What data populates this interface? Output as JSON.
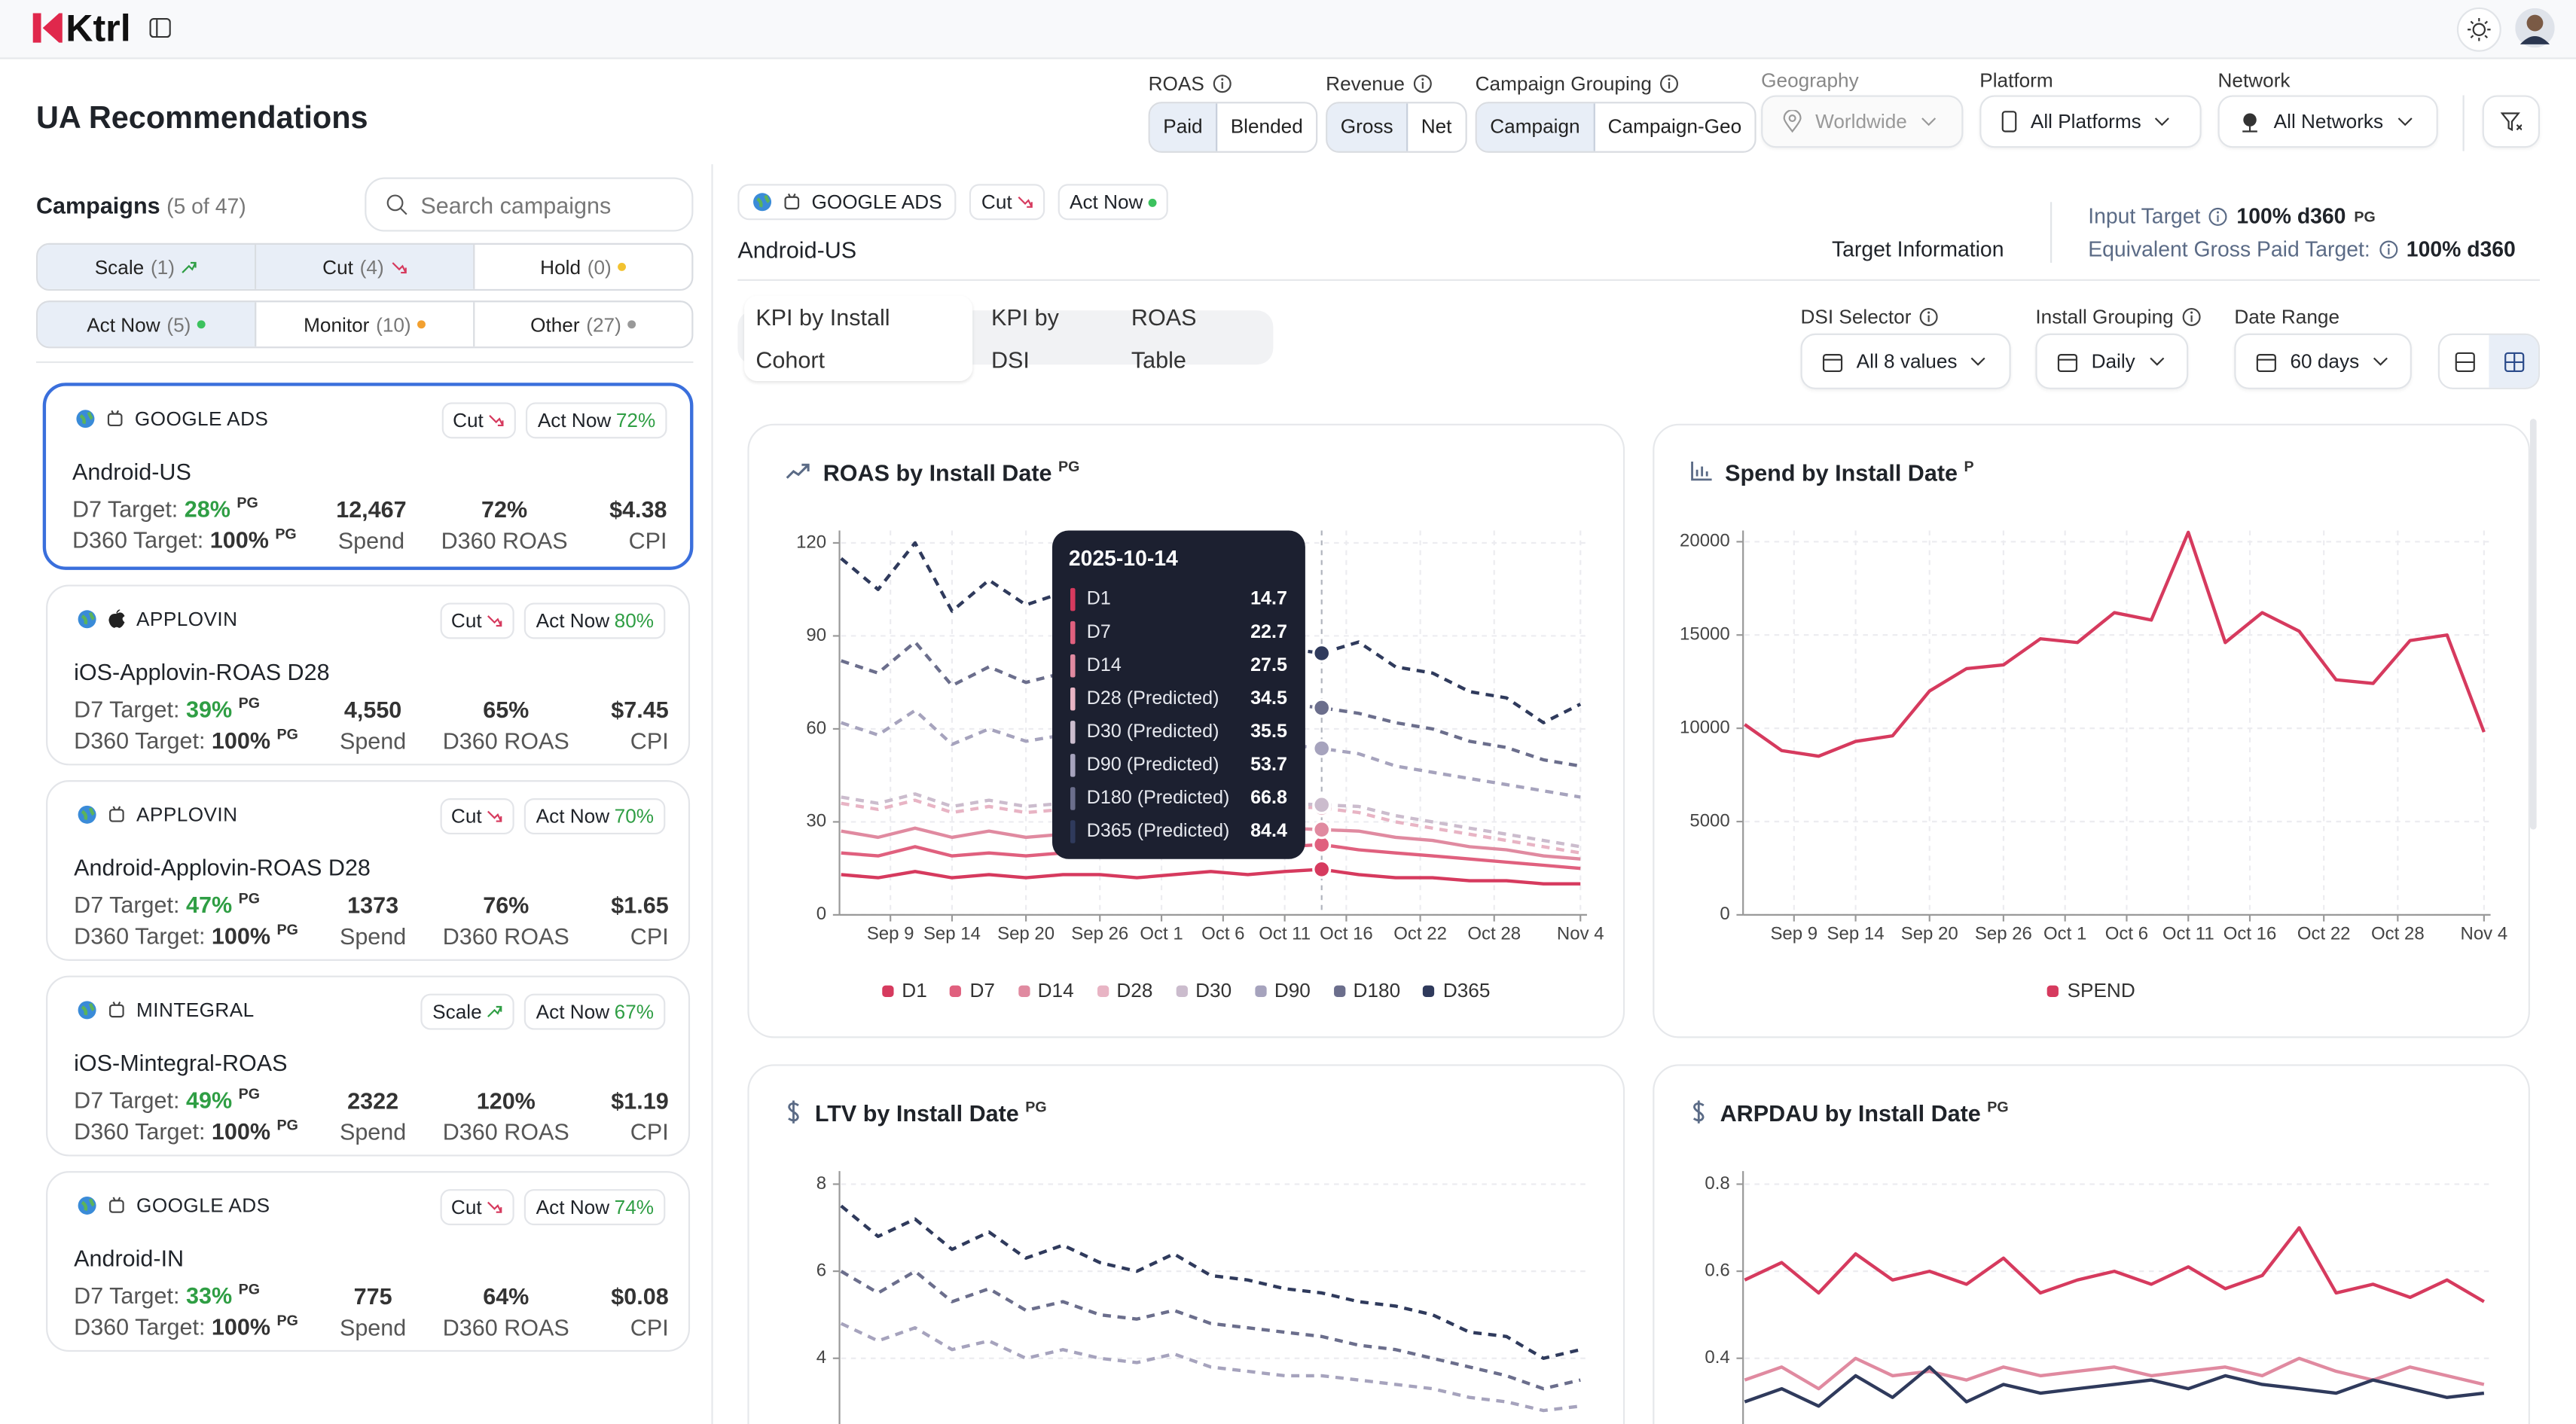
{
  "header": {
    "logo": "Ktrl"
  },
  "page_title": "UA Recommendations",
  "filters": {
    "roas": {
      "label": "ROAS",
      "options": [
        "Paid",
        "Blended"
      ]
    },
    "revenue": {
      "label": "Revenue",
      "options": [
        "Gross",
        "Net"
      ]
    },
    "campaign_grouping": {
      "label": "Campaign Grouping",
      "options": [
        "Campaign",
        "Campaign-Geo"
      ]
    },
    "geography": {
      "label": "Geography",
      "value": "Worldwide"
    },
    "platform": {
      "label": "Platform",
      "value": "All Platforms"
    },
    "network": {
      "label": "Network",
      "value": "All Networks"
    }
  },
  "campaigns": {
    "title": "Campaigns",
    "count": "(5 of 47)",
    "search_placeholder": "Search campaigns",
    "filters": [
      {
        "label": "Scale",
        "count": "(1)"
      },
      {
        "label": "Cut",
        "count": "(4)"
      },
      {
        "label": "Hold",
        "count": "(0)"
      },
      {
        "label": "Act Now",
        "count": "(5)"
      },
      {
        "label": "Monitor",
        "count": "(10)"
      },
      {
        "label": "Other",
        "count": "(27)"
      }
    ],
    "card_labels": {
      "urgency": "Act Now",
      "d7": "D7 Target:",
      "d360": "D360 Target:",
      "tag": "PG",
      "spend": "Spend",
      "roas": "D360 ROAS",
      "cpi": "CPI"
    },
    "cards": [
      {
        "network": "GOOGLE ADS",
        "action": "Cut",
        "urgency_pct": "72%",
        "name": "Android-US",
        "d7_value": "28%",
        "d360_value": "100%",
        "spend": "12,467",
        "roas": "72%",
        "cpi": "$4.38"
      },
      {
        "network": "APPLOVIN",
        "action": "Cut",
        "urgency_pct": "80%",
        "name": "iOS-Applovin-ROAS D28",
        "d7_value": "39%",
        "d360_value": "100%",
        "spend": "4,550",
        "roas": "65%",
        "cpi": "$7.45"
      },
      {
        "network": "APPLOVIN",
        "action": "Cut",
        "urgency_pct": "70%",
        "name": "Android-Applovin-ROAS D28",
        "d7_value": "47%",
        "d360_value": "100%",
        "spend": "1373",
        "roas": "76%",
        "cpi": "$1.65"
      },
      {
        "network": "MINTEGRAL",
        "action": "Scale",
        "urgency_pct": "67%",
        "name": "iOS-Mintegral-ROAS",
        "d7_value": "49%",
        "d360_value": "100%",
        "spend": "2322",
        "roas": "120%",
        "cpi": "$1.19"
      },
      {
        "network": "GOOGLE ADS",
        "action": "Cut",
        "urgency_pct": "74%",
        "name": "Android-IN",
        "d7_value": "33%",
        "d360_value": "100%",
        "spend": "775",
        "roas": "64%",
        "cpi": "$0.08"
      }
    ]
  },
  "detail": {
    "network": "GOOGLE ADS",
    "action": "Cut",
    "urgency": "Act Now",
    "campaign": "Android-US",
    "target_info": "Target Information",
    "input_target_label": "Input Target",
    "input_target": "100% d360",
    "input_target_tag": "PG",
    "equiv_label": "Equivalent Gross Paid Target:",
    "equiv_value": "100% d360",
    "tabs": [
      "KPI by Install Cohort",
      "KPI by DSI",
      "ROAS Table"
    ],
    "dsi_selector": {
      "label": "DSI Selector",
      "value": "All 8 values"
    },
    "install_grouping": {
      "label": "Install Grouping",
      "value": "Daily"
    },
    "date_range": {
      "label": "Date Range",
      "value": "60 days"
    }
  },
  "chart_data": [
    {
      "type": "line",
      "title": "ROAS by Install Date",
      "title_tag": "PG",
      "grid": true,
      "legend": true,
      "x": [
        "2025-09-05",
        "2025-09-08",
        "2025-09-11",
        "2025-09-14",
        "2025-09-17",
        "2025-09-20",
        "2025-09-23",
        "2025-09-26",
        "2025-09-29",
        "2025-10-02",
        "2025-10-05",
        "2025-10-08",
        "2025-10-11",
        "2025-10-14",
        "2025-10-17",
        "2025-10-20",
        "2025-10-23",
        "2025-10-26",
        "2025-10-29",
        "2025-11-01",
        "2025-11-04"
      ],
      "xticks": [
        {
          "value": "2025-09-09",
          "label": "Sep 9"
        },
        {
          "value": "2025-09-14",
          "label": "Sep 14"
        },
        {
          "value": "2025-09-20",
          "label": "Sep 20"
        },
        {
          "value": "2025-09-26",
          "label": "Sep 26"
        },
        {
          "value": "2025-10-01",
          "label": "Oct 1"
        },
        {
          "value": "2025-10-06",
          "label": "Oct 6"
        },
        {
          "value": "2025-10-11",
          "label": "Oct 11"
        },
        {
          "value": "2025-10-16",
          "label": "Oct 16"
        },
        {
          "value": "2025-10-22",
          "label": "Oct 22"
        },
        {
          "value": "2025-10-28",
          "label": "Oct 28"
        },
        {
          "value": "2025-11-04",
          "label": "Nov 4"
        }
      ],
      "ylim": [
        0,
        124
      ],
      "yticks": [
        0,
        30,
        60,
        90,
        120
      ],
      "series": [
        {
          "name": "D1",
          "color": "#d63a5e",
          "line_style": "solid",
          "values": [
            13,
            12,
            14,
            12,
            13,
            12,
            13,
            13,
            12,
            13,
            14,
            13,
            14,
            14.7,
            13,
            12,
            12,
            11,
            11,
            10,
            10
          ]
        },
        {
          "name": "D7",
          "color": "#e0607e",
          "line_style": "solid",
          "values": [
            20,
            19,
            22,
            19,
            20,
            19,
            20,
            21,
            20,
            21,
            22,
            21,
            22,
            22.7,
            21,
            20,
            19,
            18,
            17,
            16,
            15
          ]
        },
        {
          "name": "D14",
          "color": "#e08aa0",
          "line_style": "solid",
          "values": [
            27,
            25,
            28,
            25,
            27,
            25,
            26,
            27,
            26,
            28,
            28,
            27,
            28,
            27.5,
            27,
            25,
            24,
            22,
            21,
            19,
            18
          ]
        },
        {
          "name": "D28",
          "color": "#e8b4c4",
          "line_style": "dashed",
          "values": [
            36,
            34,
            37,
            33,
            35,
            33,
            34,
            35,
            34,
            36,
            35,
            34,
            35,
            34.5,
            33,
            30,
            28,
            26,
            24,
            22,
            20
          ]
        },
        {
          "name": "D30",
          "color": "#cbbccd",
          "line_style": "dashed",
          "values": [
            38,
            36,
            39,
            35,
            37,
            35,
            36,
            37,
            36,
            38,
            37,
            36,
            36,
            35.5,
            35,
            32,
            30,
            28,
            26,
            24,
            22
          ]
        },
        {
          "name": "D90",
          "color": "#a6a3bd",
          "line_style": "dashed",
          "values": [
            62,
            58,
            66,
            55,
            60,
            56,
            58,
            57,
            56,
            58,
            55,
            54,
            55,
            53.7,
            52,
            48,
            46,
            44,
            42,
            40,
            38
          ]
        },
        {
          "name": "D180",
          "color": "#6b6e8c",
          "line_style": "dashed",
          "values": [
            82,
            78,
            88,
            74,
            80,
            75,
            78,
            76,
            74,
            76,
            70,
            68,
            68,
            66.8,
            65,
            62,
            60,
            56,
            54,
            50,
            48
          ]
        },
        {
          "name": "D365",
          "color": "#2f3a5c",
          "line_style": "dashed",
          "values": [
            115,
            105,
            120,
            98,
            108,
            100,
            104,
            100,
            96,
            98,
            90,
            86,
            86,
            84.4,
            88,
            80,
            78,
            72,
            70,
            62,
            68
          ]
        }
      ],
      "tooltip": {
        "x": "2025-10-14",
        "labels": [
          "D1",
          "D7",
          "D14",
          "D28 (Predicted)",
          "D30 (Predicted)",
          "D90 (Predicted)",
          "D180 (Predicted)",
          "D365 (Predicted)"
        ]
      }
    },
    {
      "type": "line",
      "title": "Spend by Install Date",
      "title_tag": "P",
      "grid": true,
      "legend": true,
      "x": [
        "2025-09-05",
        "2025-09-08",
        "2025-09-11",
        "2025-09-14",
        "2025-09-17",
        "2025-09-20",
        "2025-09-23",
        "2025-09-26",
        "2025-09-29",
        "2025-10-02",
        "2025-10-05",
        "2025-10-08",
        "2025-10-11",
        "2025-10-14",
        "2025-10-17",
        "2025-10-20",
        "2025-10-23",
        "2025-10-26",
        "2025-10-29",
        "2025-11-01",
        "2025-11-04"
      ],
      "xticks": [
        {
          "value": "2025-09-09",
          "label": "Sep 9"
        },
        {
          "value": "2025-09-14",
          "label": "Sep 14"
        },
        {
          "value": "2025-09-20",
          "label": "Sep 20"
        },
        {
          "value": "2025-09-26",
          "label": "Sep 26"
        },
        {
          "value": "2025-10-01",
          "label": "Oct 1"
        },
        {
          "value": "2025-10-06",
          "label": "Oct 6"
        },
        {
          "value": "2025-10-11",
          "label": "Oct 11"
        },
        {
          "value": "2025-10-16",
          "label": "Oct 16"
        },
        {
          "value": "2025-10-22",
          "label": "Oct 22"
        },
        {
          "value": "2025-10-28",
          "label": "Oct 28"
        },
        {
          "value": "2025-11-04",
          "label": "Nov 4"
        }
      ],
      "ylim": [
        0,
        20600
      ],
      "yticks": [
        0,
        5000,
        10000,
        15000,
        20000
      ],
      "series": [
        {
          "name": "SPEND",
          "color": "#d63a5e",
          "line_style": "solid",
          "values": [
            10200,
            8800,
            8500,
            9300,
            9600,
            12000,
            13200,
            13400,
            14800,
            14600,
            16200,
            15800,
            20500,
            14600,
            16200,
            15200,
            12600,
            12400,
            14700,
            15000,
            9800
          ]
        }
      ]
    },
    {
      "type": "line",
      "title": "LTV by Install Date",
      "title_tag": "PG",
      "grid": true,
      "legend": false,
      "x": [
        "2025-09-05",
        "2025-09-08",
        "2025-09-11",
        "2025-09-14",
        "2025-09-17",
        "2025-09-20",
        "2025-09-23",
        "2025-09-26",
        "2025-09-29",
        "2025-10-02",
        "2025-10-05",
        "2025-10-08",
        "2025-10-11",
        "2025-10-14",
        "2025-10-17",
        "2025-10-20",
        "2025-10-23",
        "2025-10-26",
        "2025-10-29",
        "2025-11-01",
        "2025-11-04"
      ],
      "ylim": [
        0,
        8.3
      ],
      "yticks": [
        4,
        6,
        8
      ],
      "series": [
        {
          "color": "#2f3a5c",
          "line_style": "dashed",
          "values": [
            7.5,
            6.8,
            7.2,
            6.5,
            6.9,
            6.3,
            6.6,
            6.2,
            6.0,
            6.4,
            5.9,
            5.8,
            5.6,
            5.5,
            5.3,
            5.2,
            5.0,
            4.6,
            4.5,
            4.0,
            4.2
          ]
        },
        {
          "color": "#6b6e8c",
          "line_style": "dashed",
          "values": [
            6.0,
            5.5,
            6.0,
            5.3,
            5.6,
            5.1,
            5.3,
            5.0,
            4.9,
            5.1,
            4.8,
            4.7,
            4.6,
            4.5,
            4.3,
            4.2,
            4.0,
            3.8,
            3.6,
            3.3,
            3.5
          ]
        },
        {
          "color": "#a6a3bd",
          "line_style": "dashed",
          "values": [
            4.8,
            4.4,
            4.7,
            4.2,
            4.4,
            4.0,
            4.2,
            4.0,
            3.9,
            4.1,
            3.8,
            3.7,
            3.6,
            3.6,
            3.5,
            3.4,
            3.3,
            3.1,
            3.0,
            2.8,
            2.9
          ]
        }
      ]
    },
    {
      "type": "line",
      "title": "ARPDAU by Install Date",
      "title_tag": "PG",
      "grid": true,
      "legend": false,
      "x": [
        "2025-09-05",
        "2025-09-08",
        "2025-09-11",
        "2025-09-14",
        "2025-09-17",
        "2025-09-20",
        "2025-09-23",
        "2025-09-26",
        "2025-09-29",
        "2025-10-02",
        "2025-10-05",
        "2025-10-08",
        "2025-10-11",
        "2025-10-14",
        "2025-10-17",
        "2025-10-20",
        "2025-10-23",
        "2025-10-26",
        "2025-10-29",
        "2025-11-01",
        "2025-11-04"
      ],
      "ylim": [
        0,
        0.83
      ],
      "yticks": [
        0.4,
        0.6,
        0.8
      ],
      "series": [
        {
          "color": "#d63a5e",
          "line_style": "solid",
          "values": [
            0.58,
            0.62,
            0.55,
            0.64,
            0.58,
            0.6,
            0.57,
            0.63,
            0.55,
            0.58,
            0.6,
            0.57,
            0.61,
            0.56,
            0.59,
            0.7,
            0.55,
            0.57,
            0.54,
            0.58,
            0.53
          ]
        },
        {
          "color": "#e08aa0",
          "line_style": "solid",
          "values": [
            0.35,
            0.38,
            0.33,
            0.4,
            0.36,
            0.37,
            0.35,
            0.38,
            0.36,
            0.37,
            0.38,
            0.36,
            0.37,
            0.38,
            0.36,
            0.4,
            0.37,
            0.35,
            0.38,
            0.36,
            0.34
          ]
        },
        {
          "color": "#2f3a5c",
          "line_style": "solid",
          "values": [
            0.3,
            0.33,
            0.29,
            0.36,
            0.31,
            0.38,
            0.3,
            0.34,
            0.32,
            0.33,
            0.34,
            0.35,
            0.33,
            0.36,
            0.34,
            0.33,
            0.32,
            0.35,
            0.33,
            0.31,
            0.32
          ]
        }
      ]
    }
  ]
}
